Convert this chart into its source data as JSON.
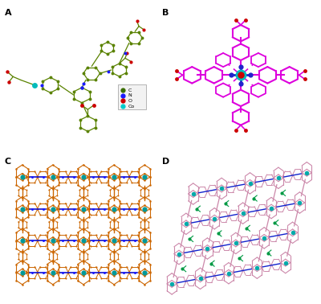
{
  "panel_labels": [
    "A",
    "B",
    "C",
    "D"
  ],
  "background_color": "#ffffff",
  "legend_items": [
    {
      "label": "C",
      "color": "#3a6e00"
    },
    {
      "label": "N",
      "color": "#1a1aff"
    },
    {
      "label": "O",
      "color": "#cc0000"
    },
    {
      "label": "Co",
      "color": "#00cccc"
    }
  ],
  "c_color": "#5a8200",
  "n_color": "#1a1aff",
  "o_color": "#cc0000",
  "co_color": "#00bbbb",
  "mg_color": "#dd00dd",
  "nb_color": "#2222cc",
  "orange": "#cc6600",
  "blue_c": "#1111cc",
  "teal_c": "#009999",
  "pink": "#cc88aa",
  "teal_d": "#00aaaa",
  "green_d": "#009944",
  "blue_d": "#1122cc",
  "fig_width": 4.0,
  "fig_height": 3.78,
  "dpi": 100
}
